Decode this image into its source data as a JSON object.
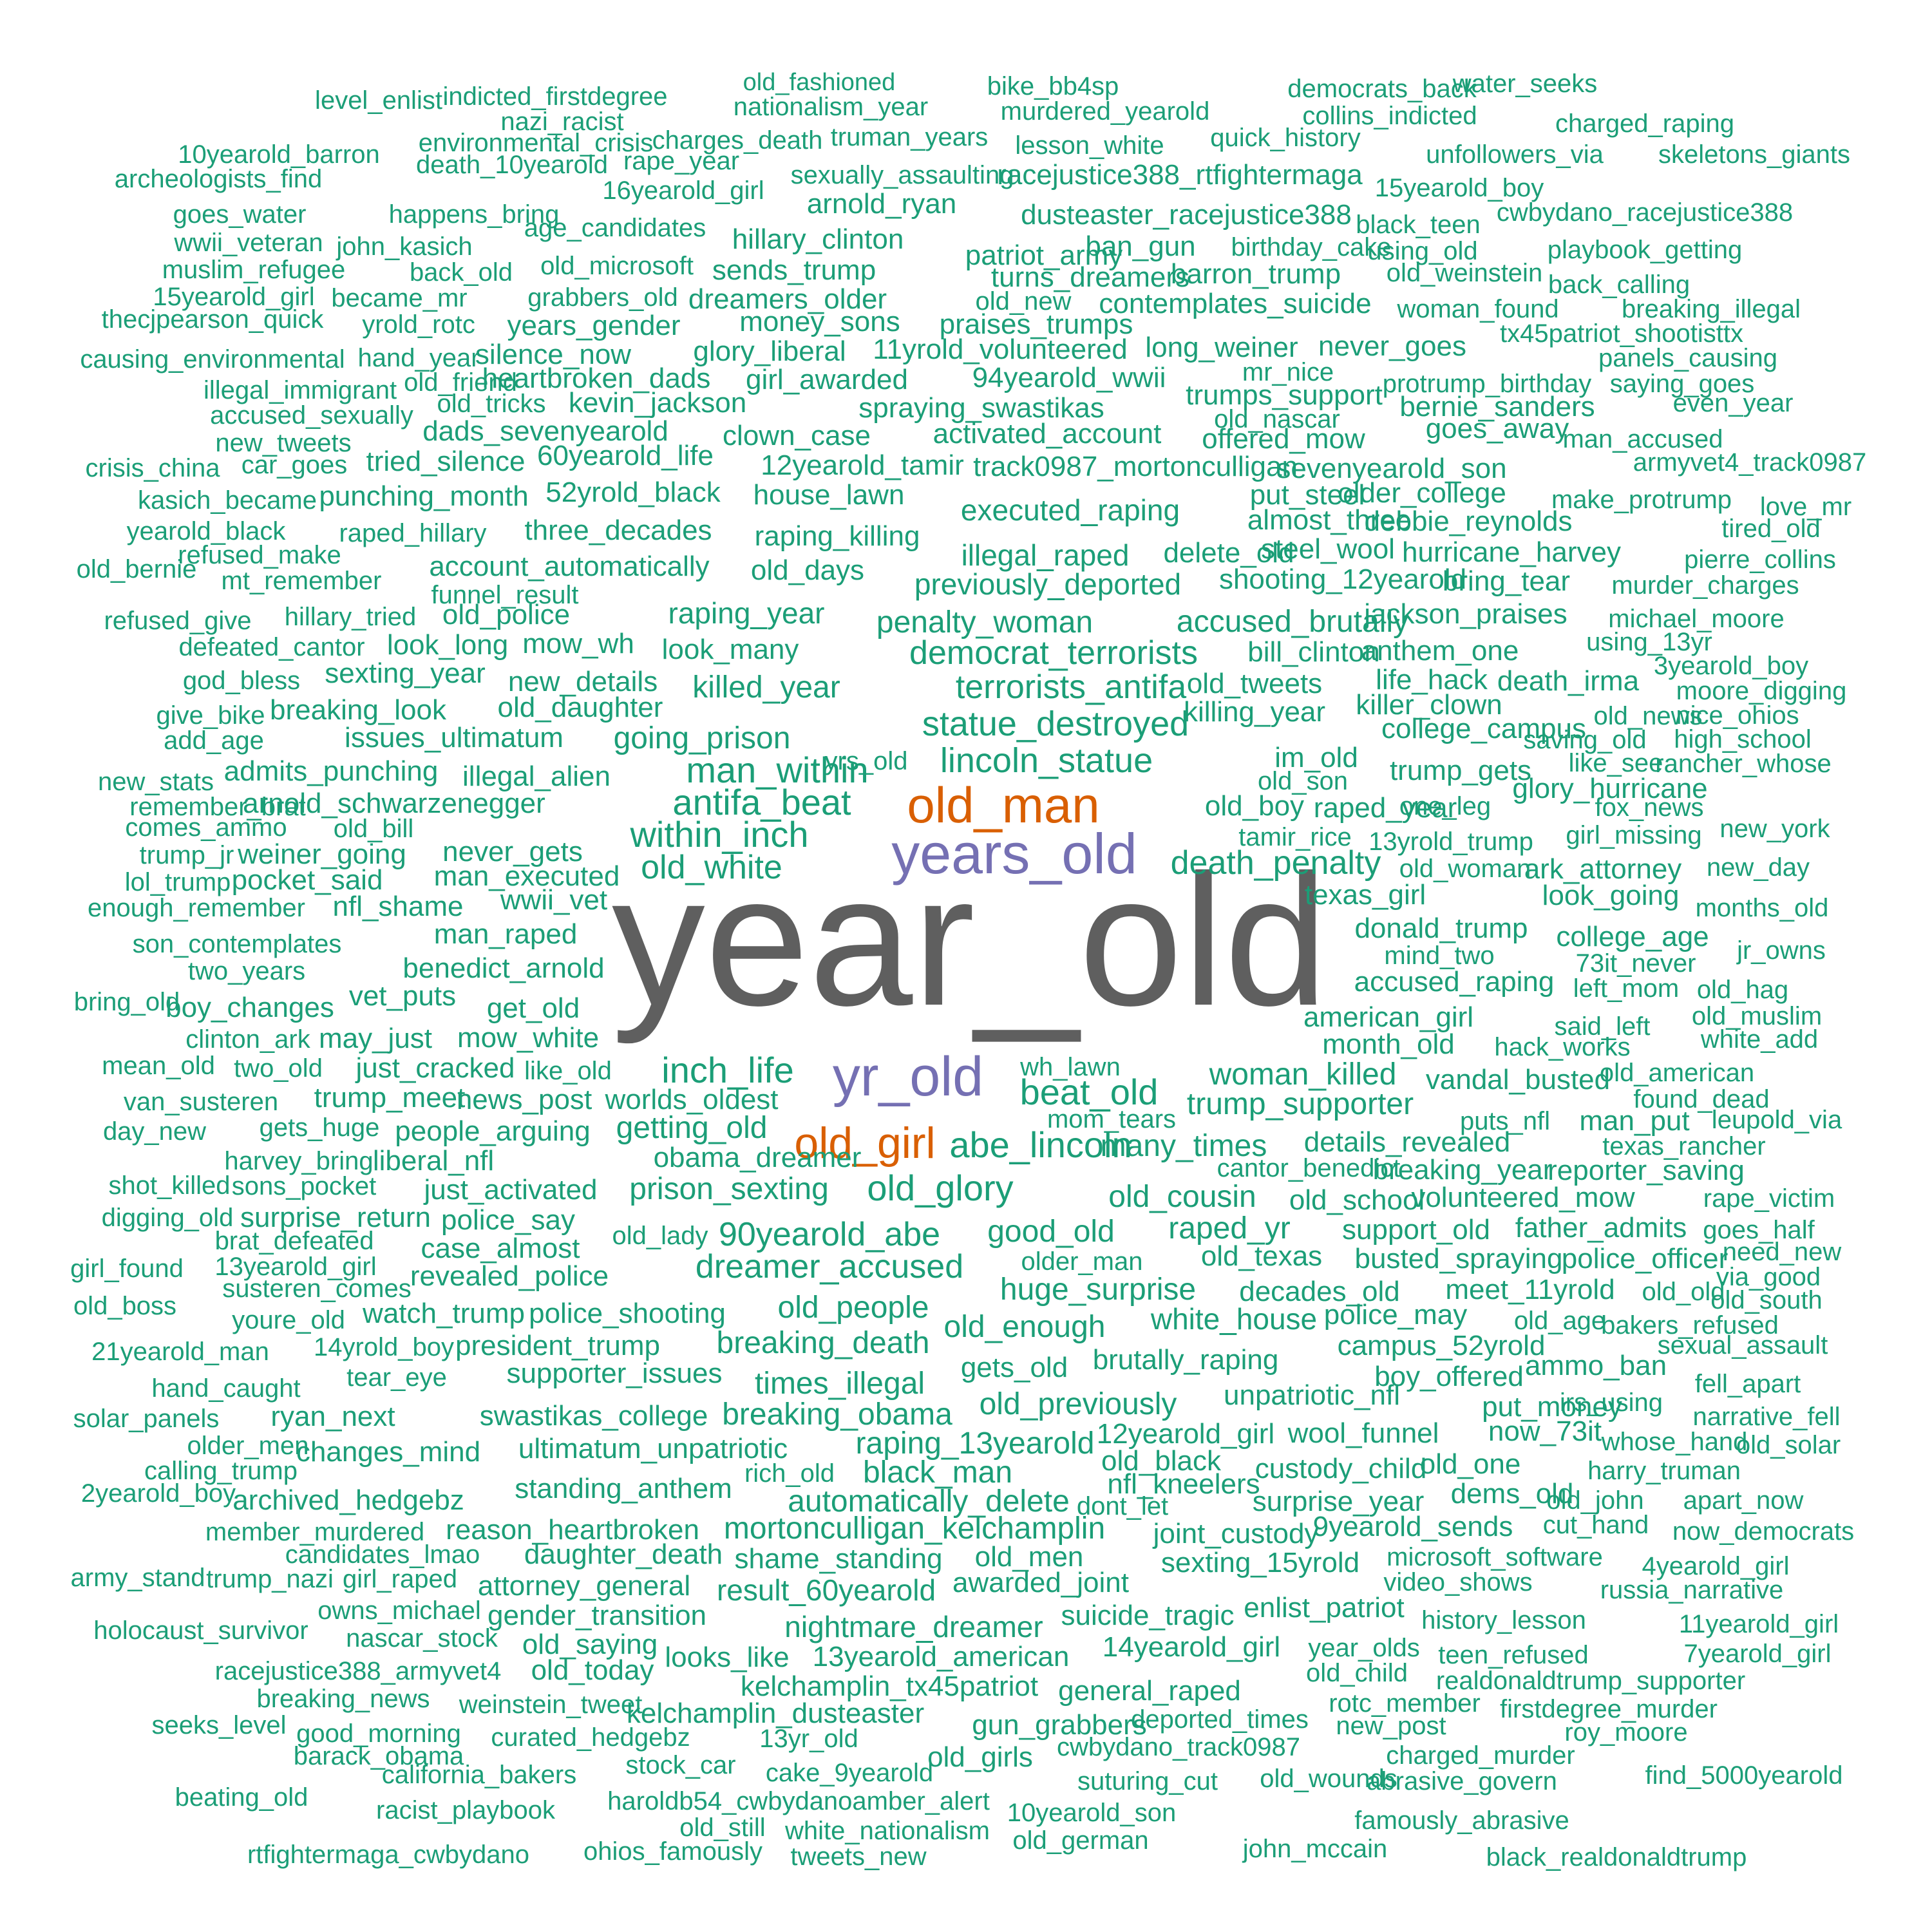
{
  "palette": {
    "primary": "#5f5f5f",
    "secondary": "#7570b3",
    "tertiary": "#d95f02",
    "base": "#1b9e77"
  },
  "words": [
    {
      "text": "year_old",
      "tier": "primary"
    },
    {
      "text": "years_old",
      "tier": "secondary"
    },
    {
      "text": "yr_old",
      "tier": "secondary"
    },
    {
      "text": "old_man",
      "tier": "tertiary"
    },
    {
      "text": "old_girl",
      "tier": "tertiary"
    },
    {
      "text": "level_enlist"
    },
    {
      "text": "indicted_firstdegree"
    },
    {
      "text": "old_fashioned"
    },
    {
      "text": "nationalism_year"
    },
    {
      "text": "bike_bb4sp"
    },
    {
      "text": "murdered_yearold"
    },
    {
      "text": "democrats_back"
    },
    {
      "text": "water_seeks"
    },
    {
      "text": "collins_indicted"
    },
    {
      "text": "nazi_racist"
    },
    {
      "text": "environmental_crisis"
    },
    {
      "text": "charges_death"
    },
    {
      "text": "truman_years"
    },
    {
      "text": "lesson_white"
    },
    {
      "text": "quick_history"
    },
    {
      "text": "charged_raping"
    },
    {
      "text": "10yearold_barron"
    },
    {
      "text": "death_10yearold"
    },
    {
      "text": "rape_year"
    },
    {
      "text": "unfollowers_via"
    },
    {
      "text": "skeletons_giants"
    },
    {
      "text": "archeologists_find"
    },
    {
      "text": "sexually_assaulting"
    },
    {
      "text": "racejustice388_rtfightermaga"
    },
    {
      "text": "16yearold_girl"
    },
    {
      "text": "15yearold_boy"
    },
    {
      "text": "arnold_ryan"
    },
    {
      "text": "goes_water"
    },
    {
      "text": "happens_bring"
    },
    {
      "text": "dusteaster_racejustice388"
    },
    {
      "text": "cwbydano_racejustice388"
    },
    {
      "text": "age_candidates"
    },
    {
      "text": "black_teen"
    },
    {
      "text": "wwii_veteran"
    },
    {
      "text": "john_kasich"
    },
    {
      "text": "hillary_clinton"
    },
    {
      "text": "ban_gun"
    },
    {
      "text": "birthday_cake"
    },
    {
      "text": "using_old"
    },
    {
      "text": "playbook_getting"
    },
    {
      "text": "patriot_army"
    },
    {
      "text": "muslim_refugee"
    },
    {
      "text": "back_old"
    },
    {
      "text": "old_microsoft"
    },
    {
      "text": "sends_trump"
    },
    {
      "text": "barron_trump"
    },
    {
      "text": "old_weinstein"
    },
    {
      "text": "turns_dreamers"
    },
    {
      "text": "back_calling"
    },
    {
      "text": "15yearold_girl"
    },
    {
      "text": "became_mr"
    },
    {
      "text": "grabbers_old"
    },
    {
      "text": "dreamers_older"
    },
    {
      "text": "old_new"
    },
    {
      "text": "contemplates_suicide"
    },
    {
      "text": "woman_found"
    },
    {
      "text": "breaking_illegal"
    },
    {
      "text": "thecjpearson_quick"
    },
    {
      "text": "yrold_rotc"
    },
    {
      "text": "years_gender"
    },
    {
      "text": "money_sons"
    },
    {
      "text": "praises_trumps"
    },
    {
      "text": "tx45patriot_shootisttx"
    },
    {
      "text": "causing_environmental"
    },
    {
      "text": "hand_year"
    },
    {
      "text": "silence_now"
    },
    {
      "text": "glory_liberal"
    },
    {
      "text": "11yrold_volunteered"
    },
    {
      "text": "long_weiner"
    },
    {
      "text": "never_goes"
    },
    {
      "text": "panels_causing"
    },
    {
      "text": "illegal_immigrant"
    },
    {
      "text": "old_friend"
    },
    {
      "text": "heartbroken_dads"
    },
    {
      "text": "girl_awarded"
    },
    {
      "text": "94yearold_wwii"
    },
    {
      "text": "mr_nice"
    },
    {
      "text": "protrump_birthday"
    },
    {
      "text": "saying_goes"
    },
    {
      "text": "accused_sexually"
    },
    {
      "text": "old_tricks"
    },
    {
      "text": "kevin_jackson"
    },
    {
      "text": "spraying_swastikas"
    },
    {
      "text": "trumps_support"
    },
    {
      "text": "bernie_sanders"
    },
    {
      "text": "even_year"
    },
    {
      "text": "new_tweets"
    },
    {
      "text": "dads_sevenyearold"
    },
    {
      "text": "clown_case"
    },
    {
      "text": "activated_account"
    },
    {
      "text": "old_nascar"
    },
    {
      "text": "offered_mow"
    },
    {
      "text": "goes_away"
    },
    {
      "text": "man_accused"
    },
    {
      "text": "crisis_china"
    },
    {
      "text": "car_goes"
    },
    {
      "text": "tried_silence"
    },
    {
      "text": "60yearold_life"
    },
    {
      "text": "12yearold_tamir"
    },
    {
      "text": "track0987_mortonculligan"
    },
    {
      "text": "sevenyearold_son"
    },
    {
      "text": "armyvet4_track0987"
    },
    {
      "text": "kasich_became"
    },
    {
      "text": "punching_month"
    },
    {
      "text": "52yrold_black"
    },
    {
      "text": "house_lawn"
    },
    {
      "text": "put_steel"
    },
    {
      "text": "older_college"
    },
    {
      "text": "make_protrump"
    },
    {
      "text": "love_mr"
    },
    {
      "text": "executed_raping"
    },
    {
      "text": "almost_three"
    },
    {
      "text": "debbie_reynolds"
    },
    {
      "text": "tired_old"
    },
    {
      "text": "yearold_black"
    },
    {
      "text": "raped_hillary"
    },
    {
      "text": "three_decades"
    },
    {
      "text": "raping_killing"
    },
    {
      "text": "old_bernie"
    },
    {
      "text": "refused_make"
    },
    {
      "text": "illegal_raped"
    },
    {
      "text": "delete_old"
    },
    {
      "text": "steel_wool"
    },
    {
      "text": "hurricane_harvey"
    },
    {
      "text": "pierre_collins"
    },
    {
      "text": "mt_remember"
    },
    {
      "text": "account_automatically"
    },
    {
      "text": "old_days"
    },
    {
      "text": "previously_deported"
    },
    {
      "text": "shooting_12yearold"
    },
    {
      "text": "bring_tear"
    },
    {
      "text": "murder_charges"
    },
    {
      "text": "funnel_result"
    },
    {
      "text": "refused_give"
    },
    {
      "text": "hillary_tried"
    },
    {
      "text": "old_police"
    },
    {
      "text": "raping_year"
    },
    {
      "text": "penalty_woman"
    },
    {
      "text": "accused_brutally"
    },
    {
      "text": "jackson_praises"
    },
    {
      "text": "michael_moore"
    },
    {
      "text": "defeated_cantor"
    },
    {
      "text": "look_long"
    },
    {
      "text": "mow_wh"
    },
    {
      "text": "look_many"
    },
    {
      "text": "democrat_terrorists"
    },
    {
      "text": "bill_clinton"
    },
    {
      "text": "anthem_one"
    },
    {
      "text": "using_13yr"
    },
    {
      "text": "god_bless"
    },
    {
      "text": "sexting_year"
    },
    {
      "text": "new_details"
    },
    {
      "text": "killed_year"
    },
    {
      "text": "terrorists_antifa"
    },
    {
      "text": "old_tweets"
    },
    {
      "text": "life_hack"
    },
    {
      "text": "death_irma"
    },
    {
      "text": "3yearold_boy"
    },
    {
      "text": "moore_digging"
    },
    {
      "text": "give_bike"
    },
    {
      "text": "breaking_look"
    },
    {
      "text": "old_daughter"
    },
    {
      "text": "killing_year"
    },
    {
      "text": "killer_clown"
    },
    {
      "text": "old_news"
    },
    {
      "text": "nice_ohios"
    },
    {
      "text": "statue_destroyed"
    },
    {
      "text": "college_campus"
    },
    {
      "text": "add_age"
    },
    {
      "text": "issues_ultimatum"
    },
    {
      "text": "going_prison"
    },
    {
      "text": "saving_old"
    },
    {
      "text": "high_school"
    },
    {
      "text": "yrs_old"
    },
    {
      "text": "lincoln_statue"
    },
    {
      "text": "im_old"
    },
    {
      "text": "like_see"
    },
    {
      "text": "rancher_whose"
    },
    {
      "text": "new_stats"
    },
    {
      "text": "admits_punching"
    },
    {
      "text": "illegal_alien"
    },
    {
      "text": "man_within"
    },
    {
      "text": "trump_gets"
    },
    {
      "text": "old_son"
    },
    {
      "text": "glory_hurricane"
    },
    {
      "text": "remember_brat"
    },
    {
      "text": "arnold_schwarzenegger"
    },
    {
      "text": "antifa_beat"
    },
    {
      "text": "old_boy"
    },
    {
      "text": "one_leg"
    },
    {
      "text": "fox_news"
    },
    {
      "text": "comes_ammo"
    },
    {
      "text": "old_bill"
    },
    {
      "text": "within_inch"
    },
    {
      "text": "raped_year"
    },
    {
      "text": "tamir_rice"
    },
    {
      "text": "girl_missing"
    },
    {
      "text": "new_york"
    },
    {
      "text": "trump_jr"
    },
    {
      "text": "weiner_going"
    },
    {
      "text": "never_gets"
    },
    {
      "text": "13yrold_trump"
    },
    {
      "text": "death_penalty"
    },
    {
      "text": "ark_attorney"
    },
    {
      "text": "new_day"
    },
    {
      "text": "lol_trump"
    },
    {
      "text": "pocket_said"
    },
    {
      "text": "man_executed"
    },
    {
      "text": "old_white"
    },
    {
      "text": "old_woman"
    },
    {
      "text": "enough_remember"
    },
    {
      "text": "nfl_shame"
    },
    {
      "text": "wwii_vet"
    },
    {
      "text": "texas_girl"
    },
    {
      "text": "look_going"
    },
    {
      "text": "months_old"
    },
    {
      "text": "son_contemplates"
    },
    {
      "text": "man_raped"
    },
    {
      "text": "donald_trump"
    },
    {
      "text": "college_age"
    },
    {
      "text": "jr_owns"
    },
    {
      "text": "two_years"
    },
    {
      "text": "benedict_arnold"
    },
    {
      "text": "mind_two"
    },
    {
      "text": "73it_never"
    },
    {
      "text": "accused_raping"
    },
    {
      "text": "left_mom"
    },
    {
      "text": "old_hag"
    },
    {
      "text": "bring_old"
    },
    {
      "text": "boy_changes"
    },
    {
      "text": "vet_puts"
    },
    {
      "text": "get_old"
    },
    {
      "text": "old_muslim"
    },
    {
      "text": "american_girl"
    },
    {
      "text": "said_left"
    },
    {
      "text": "white_add"
    },
    {
      "text": "clinton_ark"
    },
    {
      "text": "may_just"
    },
    {
      "text": "mow_white"
    },
    {
      "text": "month_old"
    },
    {
      "text": "hack_works"
    },
    {
      "text": "mean_old"
    },
    {
      "text": "two_old"
    },
    {
      "text": "just_cracked"
    },
    {
      "text": "like_old"
    },
    {
      "text": "inch_life"
    },
    {
      "text": "wh_lawn"
    },
    {
      "text": "woman_killed"
    },
    {
      "text": "old_american"
    },
    {
      "text": "van_susteren"
    },
    {
      "text": "trump_meet"
    },
    {
      "text": "news_post"
    },
    {
      "text": "worlds_oldest"
    },
    {
      "text": "beat_old"
    },
    {
      "text": "trump_supporter"
    },
    {
      "text": "vandal_busted"
    },
    {
      "text": "found_dead"
    },
    {
      "text": "day_new"
    },
    {
      "text": "gets_huge"
    },
    {
      "text": "people_arguing"
    },
    {
      "text": "getting_old"
    },
    {
      "text": "mom_tears"
    },
    {
      "text": "puts_nfl"
    },
    {
      "text": "man_put"
    },
    {
      "text": "leupold_via"
    },
    {
      "text": "abe_lincoln"
    },
    {
      "text": "many_times"
    },
    {
      "text": "details_revealed"
    },
    {
      "text": "texas_rancher"
    },
    {
      "text": "harvey_bring"
    },
    {
      "text": "liberal_nfl"
    },
    {
      "text": "obama_dreamer"
    },
    {
      "text": "cantor_benedict"
    },
    {
      "text": "breaking_year"
    },
    {
      "text": "reporter_saving"
    },
    {
      "text": "shot_killed"
    },
    {
      "text": "sons_pocket"
    },
    {
      "text": "just_activated"
    },
    {
      "text": "prison_sexting"
    },
    {
      "text": "old_glory"
    },
    {
      "text": "old_cousin"
    },
    {
      "text": "old_school"
    },
    {
      "text": "volunteered_mow"
    },
    {
      "text": "rape_victim"
    },
    {
      "text": "digging_old"
    },
    {
      "text": "surprise_return"
    },
    {
      "text": "police_say"
    },
    {
      "text": "raped_yr"
    },
    {
      "text": "support_old"
    },
    {
      "text": "father_admits"
    },
    {
      "text": "goes_half"
    },
    {
      "text": "brat_defeated"
    },
    {
      "text": "old_lady"
    },
    {
      "text": "90yearold_abe"
    },
    {
      "text": "good_old"
    },
    {
      "text": "need_new"
    },
    {
      "text": "girl_found"
    },
    {
      "text": "13yearold_girl"
    },
    {
      "text": "case_almost"
    },
    {
      "text": "dreamer_accused"
    },
    {
      "text": "older_man"
    },
    {
      "text": "old_texas"
    },
    {
      "text": "busted_spraying"
    },
    {
      "text": "police_officer"
    },
    {
      "text": "via_good"
    },
    {
      "text": "revealed_police"
    },
    {
      "text": "susteren_comes"
    },
    {
      "text": "huge_surprise"
    },
    {
      "text": "decades_old"
    },
    {
      "text": "meet_11yrold"
    },
    {
      "text": "old_old"
    },
    {
      "text": "old_south"
    },
    {
      "text": "old_boss"
    },
    {
      "text": "youre_old"
    },
    {
      "text": "watch_trump"
    },
    {
      "text": "police_shooting"
    },
    {
      "text": "old_people"
    },
    {
      "text": "white_house"
    },
    {
      "text": "police_may"
    },
    {
      "text": "old_age"
    },
    {
      "text": "bakers_refused"
    },
    {
      "text": "21yearold_man"
    },
    {
      "text": "14yrold_boy"
    },
    {
      "text": "president_trump"
    },
    {
      "text": "breaking_death"
    },
    {
      "text": "old_enough"
    },
    {
      "text": "campus_52yrold"
    },
    {
      "text": "sexual_assault"
    },
    {
      "text": "hand_caught"
    },
    {
      "text": "tear_eye"
    },
    {
      "text": "supporter_issues"
    },
    {
      "text": "gets_old"
    },
    {
      "text": "brutally_raping"
    },
    {
      "text": "boy_offered"
    },
    {
      "text": "ammo_ban"
    },
    {
      "text": "fell_apart"
    },
    {
      "text": "times_illegal"
    },
    {
      "text": "solar_panels"
    },
    {
      "text": "ryan_next"
    },
    {
      "text": "swastikas_college"
    },
    {
      "text": "breaking_obama"
    },
    {
      "text": "old_previously"
    },
    {
      "text": "unpatriotic_nfl"
    },
    {
      "text": "put_money"
    },
    {
      "text": "irs_using"
    },
    {
      "text": "narrative_fell"
    },
    {
      "text": "older_men"
    },
    {
      "text": "changes_mind"
    },
    {
      "text": "ultimatum_unpatriotic"
    },
    {
      "text": "raping_13yearold"
    },
    {
      "text": "12yearold_girl"
    },
    {
      "text": "wool_funnel"
    },
    {
      "text": "now_73it"
    },
    {
      "text": "whose_hand"
    },
    {
      "text": "old_solar"
    },
    {
      "text": "calling_trump"
    },
    {
      "text": "rich_old"
    },
    {
      "text": "black_man"
    },
    {
      "text": "old_black"
    },
    {
      "text": "custody_child"
    },
    {
      "text": "old_one"
    },
    {
      "text": "harry_truman"
    },
    {
      "text": "2yearold_boy"
    },
    {
      "text": "archived_hedgebz"
    },
    {
      "text": "standing_anthem"
    },
    {
      "text": "automatically_delete"
    },
    {
      "text": "nfl_kneelers"
    },
    {
      "text": "surprise_year"
    },
    {
      "text": "dems_old"
    },
    {
      "text": "old_john"
    },
    {
      "text": "apart_now"
    },
    {
      "text": "dont_let"
    },
    {
      "text": "member_murdered"
    },
    {
      "text": "reason_heartbroken"
    },
    {
      "text": "mortonculligan_kelchamplin"
    },
    {
      "text": "joint_custody"
    },
    {
      "text": "9yearold_sends"
    },
    {
      "text": "cut_hand"
    },
    {
      "text": "now_democrats"
    },
    {
      "text": "candidates_lmao"
    },
    {
      "text": "daughter_death"
    },
    {
      "text": "shame_standing"
    },
    {
      "text": "old_men"
    },
    {
      "text": "sexting_15yrold"
    },
    {
      "text": "microsoft_software"
    },
    {
      "text": "4yearold_girl"
    },
    {
      "text": "army_stand"
    },
    {
      "text": "trump_nazi"
    },
    {
      "text": "girl_raped"
    },
    {
      "text": "attorney_general"
    },
    {
      "text": "result_60yearold"
    },
    {
      "text": "awarded_joint"
    },
    {
      "text": "video_shows"
    },
    {
      "text": "russia_narrative"
    },
    {
      "text": "owns_michael"
    },
    {
      "text": "gender_transition"
    },
    {
      "text": "enlist_patriot"
    },
    {
      "text": "history_lesson"
    },
    {
      "text": "11yearold_girl"
    },
    {
      "text": "holocaust_survivor"
    },
    {
      "text": "nascar_stock"
    },
    {
      "text": "nightmare_dreamer"
    },
    {
      "text": "suicide_tragic"
    },
    {
      "text": "old_saying"
    },
    {
      "text": "14yearold_girl"
    },
    {
      "text": "year_olds"
    },
    {
      "text": "7yearold_girl"
    },
    {
      "text": "looks_like"
    },
    {
      "text": "13yearold_american"
    },
    {
      "text": "teen_refused"
    },
    {
      "text": "racejustice388_armyvet4"
    },
    {
      "text": "old_today"
    },
    {
      "text": "old_child"
    },
    {
      "text": "realdonaldtrump_supporter"
    },
    {
      "text": "kelchamplin_tx45patriot"
    },
    {
      "text": "general_raped"
    },
    {
      "text": "breaking_news"
    },
    {
      "text": "weinstein_tweet"
    },
    {
      "text": "rotc_member"
    },
    {
      "text": "firstdegree_murder"
    },
    {
      "text": "kelchamplin_dusteaster"
    },
    {
      "text": "deported_times"
    },
    {
      "text": "seeks_level"
    },
    {
      "text": "gun_grabbers"
    },
    {
      "text": "new_post"
    },
    {
      "text": "roy_moore"
    },
    {
      "text": "good_morning"
    },
    {
      "text": "curated_hedgebz"
    },
    {
      "text": "13yr_old"
    },
    {
      "text": "cwbydano_track0987"
    },
    {
      "text": "barack_obama"
    },
    {
      "text": "old_girls"
    },
    {
      "text": "charged_murder"
    },
    {
      "text": "stock_car"
    },
    {
      "text": "california_bakers"
    },
    {
      "text": "cake_9yearold"
    },
    {
      "text": "suturing_cut"
    },
    {
      "text": "old_wounds"
    },
    {
      "text": "abrasive_govern"
    },
    {
      "text": "find_5000yearold"
    },
    {
      "text": "beating_old"
    },
    {
      "text": "haroldb54_cwbydanoamber_alert"
    },
    {
      "text": "racist_playbook"
    },
    {
      "text": "10yearold_son"
    },
    {
      "text": "old_still"
    },
    {
      "text": "famously_abrasive"
    },
    {
      "text": "white_nationalism"
    },
    {
      "text": "old_german"
    },
    {
      "text": "rtfightermaga_cwbydano"
    },
    {
      "text": "ohios_famously"
    },
    {
      "text": "tweets_new"
    },
    {
      "text": "john_mccain"
    },
    {
      "text": "black_realdonaldtrump"
    }
  ]
}
